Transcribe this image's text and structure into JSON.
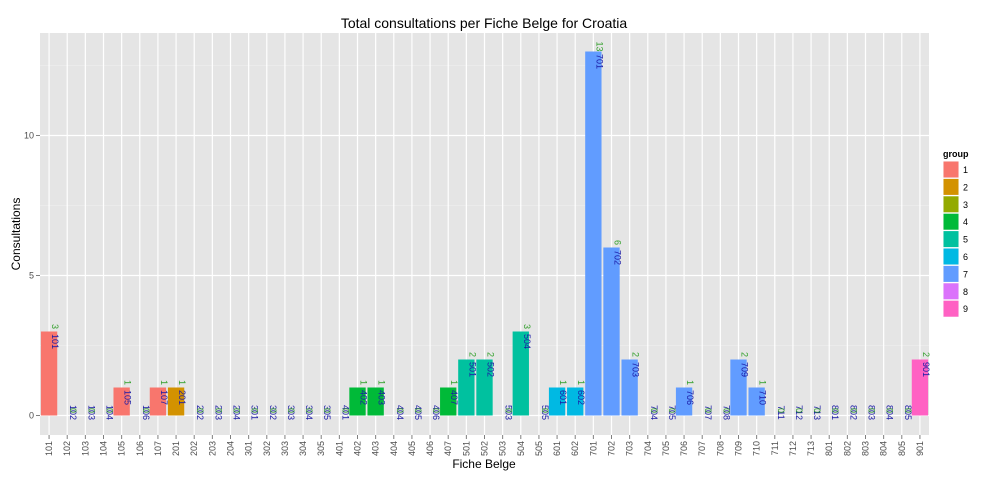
{
  "chart_data": {
    "type": "bar",
    "title": "Total consultations per Fiche Belge for Croatia",
    "xlabel": "Fiche Belge",
    "ylabel": "Consultations",
    "ylim": [
      0,
      13.6
    ],
    "yticks": [
      0,
      5,
      10
    ],
    "grid": true,
    "legend": {
      "title": "group",
      "placement": "right",
      "entries": [
        {
          "label": "1",
          "color": "#F8766D"
        },
        {
          "label": "2",
          "color": "#D39200"
        },
        {
          "label": "3",
          "color": "#93AA00"
        },
        {
          "label": "4",
          "color": "#00BA38"
        },
        {
          "label": "5",
          "color": "#00C19F"
        },
        {
          "label": "6",
          "color": "#00B9E3"
        },
        {
          "label": "7",
          "color": "#619CFF"
        },
        {
          "label": "8",
          "color": "#DB72FB"
        },
        {
          "label": "9",
          "color": "#FF61C3"
        }
      ]
    },
    "label_colors": {
      "count": "#33a02c",
      "id_zero": "#1a1aa6",
      "id_bar": "#1a1aa6"
    },
    "categories": [
      "101",
      "102",
      "103",
      "104",
      "105",
      "106",
      "107",
      "201",
      "202",
      "203",
      "204",
      "301",
      "302",
      "303",
      "304",
      "305",
      "401",
      "402",
      "403",
      "404",
      "405",
      "406",
      "407",
      "501",
      "502",
      "503",
      "504",
      "505",
      "601",
      "602",
      "701",
      "702",
      "703",
      "704",
      "705",
      "706",
      "707",
      "708",
      "709",
      "710",
      "711",
      "712",
      "713",
      "801",
      "802",
      "803",
      "804",
      "805",
      "901"
    ],
    "values": [
      3,
      0,
      0,
      0,
      1,
      0,
      1,
      1,
      0,
      0,
      0,
      0,
      0,
      0,
      0,
      0,
      0,
      1,
      1,
      0,
      0,
      0,
      1,
      2,
      2,
      0,
      3,
      0,
      1,
      1,
      13,
      6,
      2,
      0,
      0,
      1,
      0,
      0,
      2,
      1,
      0,
      0,
      0,
      0,
      0,
      0,
      0,
      0,
      2
    ],
    "groups": [
      "1",
      "1",
      "1",
      "1",
      "1",
      "1",
      "1",
      "2",
      "2",
      "2",
      "2",
      "3",
      "3",
      "3",
      "3",
      "3",
      "4",
      "4",
      "4",
      "4",
      "4",
      "4",
      "4",
      "5",
      "5",
      "5",
      "5",
      "5",
      "6",
      "6",
      "7",
      "7",
      "7",
      "7",
      "7",
      "7",
      "7",
      "7",
      "7",
      "7",
      "7",
      "7",
      "7",
      "8",
      "8",
      "8",
      "8",
      "8",
      "9"
    ]
  }
}
